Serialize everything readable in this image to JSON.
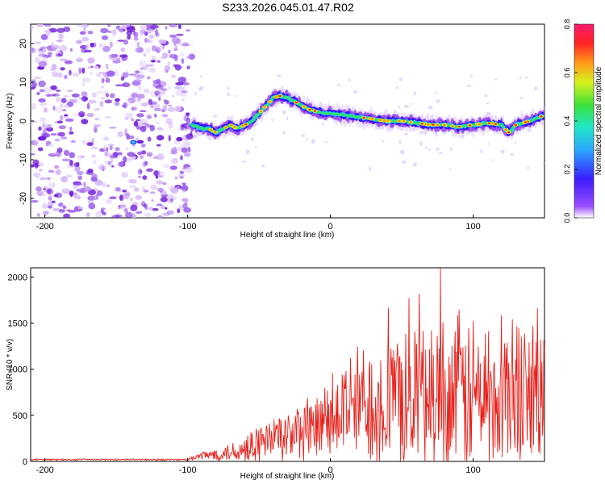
{
  "title": "S233.2026.045.01.47.R02",
  "colors": {
    "line": "#e8211c",
    "noise": "#7d2be0",
    "axis": "#000000"
  },
  "chart_data": [
    {
      "type": "heatmap",
      "name": "spectrogram",
      "xlabel": "Height of straight line (km)",
      "ylabel": "Frequency (Hz)",
      "xlim": [
        -210,
        150
      ],
      "ylim": [
        -25,
        25
      ],
      "xticks": [
        -200,
        -100,
        0,
        100
      ],
      "xtick_labels": [
        "-200",
        "-100",
        "0",
        "100"
      ],
      "yticks": [
        -20,
        -10,
        0,
        10,
        20
      ],
      "ytick_labels": [
        "-20",
        "-10",
        "0",
        "10",
        "20"
      ],
      "ridge": {
        "x": [
          -97,
          -90,
          -85,
          -80,
          -75,
          -70,
          -65,
          -60,
          -55,
          -50,
          -45,
          -40,
          -35,
          -30,
          -25,
          -20,
          -15,
          -10,
          -5,
          0,
          10,
          20,
          30,
          40,
          50,
          60,
          70,
          80,
          90,
          100,
          110,
          120,
          125,
          130,
          140,
          150
        ],
        "freq": [
          -1,
          -2,
          -2,
          -3,
          -2,
          -1,
          -2,
          -1,
          0,
          2,
          4,
          6,
          6.5,
          6,
          5,
          4,
          3,
          2.5,
          2,
          2,
          1.5,
          1,
          0.5,
          0,
          0,
          -0.5,
          -1,
          -1,
          -1.5,
          -1,
          -0.5,
          -1,
          -3,
          -1,
          0,
          1.5
        ]
      },
      "noise_region": [
        -210,
        -97
      ],
      "colorbar": {
        "label": "Normalized spectral amplitude",
        "range": [
          0.0,
          0.8
        ],
        "ticks": [
          0.0,
          0.2,
          0.4,
          0.6,
          0.8
        ],
        "tick_labels": [
          "0.0",
          "0.2",
          "0.4",
          "0.6",
          "0.8"
        ]
      }
    },
    {
      "type": "line",
      "name": "snr",
      "xlabel": "Height of straight line (km)",
      "ylabel": "SNR (10 * v/v)",
      "xlim": [
        -210,
        150
      ],
      "ylim": [
        0,
        2100
      ],
      "xticks": [
        -200,
        -100,
        0,
        100
      ],
      "xtick_labels": [
        "-200",
        "-100",
        "0",
        "100"
      ],
      "yticks": [
        0,
        500,
        1000,
        1500,
        2000
      ],
      "ytick_labels": [
        "0",
        "500",
        "1000",
        "1500",
        "2000"
      ],
      "envelope": {
        "x": [
          -210,
          -100,
          -90,
          -80,
          -70,
          -60,
          -50,
          -40,
          -30,
          -20,
          -10,
          0,
          10,
          20,
          30,
          40,
          50,
          60,
          70,
          80,
          90,
          100,
          110,
          120,
          130,
          140,
          150
        ],
        "mean": [
          20,
          20,
          60,
          80,
          100,
          140,
          200,
          250,
          280,
          320,
          340,
          450,
          550,
          620,
          650,
          680,
          700,
          720,
          700,
          720,
          730,
          720,
          700,
          720,
          740,
          700,
          700
        ],
        "spread": [
          10,
          10,
          60,
          80,
          120,
          180,
          250,
          300,
          340,
          380,
          420,
          500,
          650,
          750,
          800,
          850,
          900,
          950,
          1000,
          1000,
          1000,
          1000,
          1000,
          1000,
          1000,
          1000,
          1000
        ]
      },
      "peak": {
        "x": 77,
        "y": 2100
      }
    }
  ]
}
